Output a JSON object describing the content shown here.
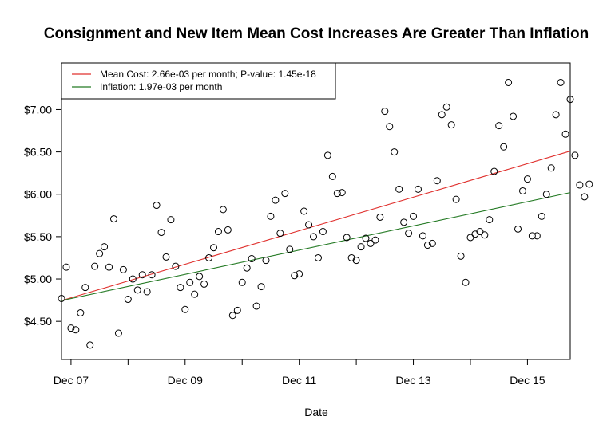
{
  "chart_data": {
    "type": "scatter",
    "title": "Consignment and New Item Mean Cost Increases Are Greater Than Inflation",
    "xlabel": "Date",
    "ylabel": "",
    "xlim": [
      "2007-10-01",
      "2016-09-01"
    ],
    "ylim": [
      4.05,
      7.55
    ],
    "x_ticks": [
      {
        "date": "2007-12-01",
        "label": "Dec 07"
      },
      {
        "date": "2008-12-01",
        "label": ""
      },
      {
        "date": "2009-12-01",
        "label": "Dec 09"
      },
      {
        "date": "2010-12-01",
        "label": ""
      },
      {
        "date": "2011-12-01",
        "label": "Dec 11"
      },
      {
        "date": "2012-12-01",
        "label": ""
      },
      {
        "date": "2013-12-01",
        "label": "Dec 13"
      },
      {
        "date": "2014-12-01",
        "label": ""
      },
      {
        "date": "2015-12-01",
        "label": "Dec 15"
      }
    ],
    "y_ticks": [
      {
        "value": 4.5,
        "label": "$4.50"
      },
      {
        "value": 5.0,
        "label": "$5.00"
      },
      {
        "value": 5.5,
        "label": "$5.50"
      },
      {
        "value": 6.0,
        "label": "$6.00"
      },
      {
        "value": 6.5,
        "label": "$6.50"
      },
      {
        "value": 7.0,
        "label": "$7.00"
      }
    ],
    "grid": false,
    "legend_position": "top-left",
    "legend": [
      {
        "label": "Mean Cost: 2.66e-03 per month; P-value: 1.45e-18",
        "color": "#e0312e"
      },
      {
        "label": "Inflation: 1.97e-03 per month",
        "color": "#247a24"
      }
    ],
    "series": [
      {
        "kind": "points",
        "color": "#000000",
        "x": [
          "2007-10",
          "2007-11",
          "2007-12",
          "2008-01",
          "2008-02",
          "2008-03",
          "2008-04",
          "2008-05",
          "2008-06",
          "2008-07",
          "2008-08",
          "2008-09",
          "2008-10",
          "2008-11",
          "2008-12",
          "2009-01",
          "2009-02",
          "2009-03",
          "2009-04",
          "2009-05",
          "2009-06",
          "2009-07",
          "2009-08",
          "2009-09",
          "2009-10",
          "2009-11",
          "2009-12",
          "2010-01",
          "2010-02",
          "2010-03",
          "2010-04",
          "2010-05",
          "2010-06",
          "2010-07",
          "2010-08",
          "2010-09",
          "2010-10",
          "2010-11",
          "2010-12",
          "2011-01",
          "2011-02",
          "2011-03",
          "2011-04",
          "2011-05",
          "2011-06",
          "2011-07",
          "2011-08",
          "2011-09",
          "2011-10",
          "2011-11",
          "2011-12",
          "2012-01",
          "2012-02",
          "2012-03",
          "2012-04",
          "2012-05",
          "2012-06",
          "2012-07",
          "2012-08",
          "2012-09",
          "2012-10",
          "2012-11",
          "2012-12",
          "2013-01",
          "2013-02",
          "2013-03",
          "2013-04",
          "2013-05",
          "2013-06",
          "2013-07",
          "2013-08",
          "2013-09",
          "2013-10",
          "2013-11",
          "2013-12",
          "2014-01",
          "2014-02",
          "2014-03",
          "2014-04",
          "2014-05",
          "2014-06",
          "2014-07",
          "2014-08",
          "2014-09",
          "2014-10",
          "2014-11",
          "2014-12",
          "2015-01",
          "2015-02",
          "2015-03",
          "2015-04",
          "2015-05",
          "2015-06",
          "2015-07",
          "2015-08",
          "2015-09",
          "2015-10",
          "2015-11",
          "2015-12",
          "2016-01",
          "2016-02",
          "2016-03",
          "2016-04",
          "2016-05"
        ],
        "y": [
          4.77,
          5.14,
          4.42,
          4.4,
          4.6,
          4.9,
          4.22,
          5.15,
          5.3,
          5.38,
          5.14,
          5.71,
          4.36,
          5.11,
          4.76,
          5.0,
          4.87,
          5.05,
          4.85,
          5.05,
          5.87,
          5.55,
          5.26,
          5.7,
          5.15,
          4.9,
          4.64,
          4.96,
          4.82,
          5.03,
          4.94,
          5.25,
          5.37,
          5.56,
          5.82,
          5.58,
          4.57,
          4.63,
          4.96,
          5.13,
          5.24,
          4.68,
          4.91,
          5.22,
          5.74,
          5.93,
          5.54,
          6.01,
          5.35,
          5.04,
          5.06,
          5.8,
          5.64,
          5.5,
          5.25,
          5.56,
          6.46,
          6.21,
          6.01,
          6.02,
          5.49,
          5.25,
          5.22,
          5.38,
          5.48,
          5.42,
          5.46,
          5.73,
          6.98,
          6.8,
          6.5,
          6.06,
          5.67,
          5.54,
          5.74,
          6.06,
          5.51,
          5.4,
          5.42,
          6.16,
          6.94,
          7.03,
          6.82,
          5.94,
          5.27,
          4.96,
          5.49,
          5.53,
          5.56,
          5.52,
          5.7,
          6.27,
          6.81,
          6.56,
          7.32,
          6.92,
          5.59,
          6.04,
          6.18,
          5.51,
          5.51,
          5.74,
          6.0,
          6.31
        ]
      },
      {
        "kind": "points",
        "color": "#000000",
        "x": [
          "2016-06",
          "2016-07",
          "2016-08",
          "2016-09",
          "2016-10",
          "2016-11"
        ],
        "y": [
          6.94,
          7.32,
          6.71,
          7.12,
          6.46,
          6.11
        ]
      },
      {
        "kind": "points",
        "color": "#000000",
        "x": [
          "2016-12",
          "2017-01"
        ],
        "y": [
          5.97,
          6.12
        ]
      },
      {
        "kind": "line",
        "name": "Mean Cost: 2.66e-03 per month; P-value: 1.45e-18",
        "color": "#e0312e",
        "x": [
          "2007-10-01",
          "2016-09-01"
        ],
        "y": [
          4.745,
          6.51
        ]
      },
      {
        "kind": "line",
        "name": "Inflation: 1.97e-03 per month",
        "color": "#247a24",
        "x": [
          "2007-10-01",
          "2016-09-01"
        ],
        "y": [
          4.745,
          6.02
        ]
      }
    ]
  }
}
